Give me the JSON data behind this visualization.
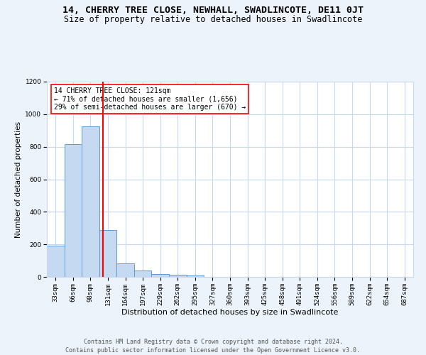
{
  "title": "14, CHERRY TREE CLOSE, NEWHALL, SWADLINCOTE, DE11 0JT",
  "subtitle": "Size of property relative to detached houses in Swadlincote",
  "xlabel": "Distribution of detached houses by size in Swadlincote",
  "ylabel": "Number of detached properties",
  "footer1": "Contains HM Land Registry data © Crown copyright and database right 2024.",
  "footer2": "Contains public sector information licensed under the Open Government Licence v3.0.",
  "bar_labels": [
    "33sqm",
    "66sqm",
    "98sqm",
    "131sqm",
    "164sqm",
    "197sqm",
    "229sqm",
    "262sqm",
    "295sqm",
    "327sqm",
    "360sqm",
    "393sqm",
    "425sqm",
    "458sqm",
    "491sqm",
    "524sqm",
    "556sqm",
    "589sqm",
    "622sqm",
    "654sqm",
    "687sqm"
  ],
  "bar_values": [
    190,
    815,
    925,
    290,
    82,
    38,
    18,
    12,
    10,
    0,
    0,
    0,
    0,
    0,
    0,
    0,
    0,
    0,
    0,
    0,
    0
  ],
  "bar_color": "#c5d9f0",
  "bar_edge_color": "#5b9bd5",
  "bar_width": 1.0,
  "vline_color": "red",
  "ylim": [
    0,
    1200
  ],
  "yticks": [
    0,
    200,
    400,
    600,
    800,
    1000,
    1200
  ],
  "annotation_line1": "14 CHERRY TREE CLOSE: 121sqm",
  "annotation_line2": "← 71% of detached houses are smaller (1,656)",
  "annotation_line3": "29% of semi-detached houses are larger (670) →",
  "annotation_box_color": "white",
  "annotation_box_edge_color": "red",
  "bg_color": "#edf3fb",
  "plot_bg_color": "white",
  "grid_color": "#c8d8ee",
  "title_fontsize": 9.5,
  "subtitle_fontsize": 8.5,
  "xlabel_fontsize": 8,
  "ylabel_fontsize": 7.5,
  "tick_fontsize": 6.5,
  "annotation_fontsize": 7,
  "footer_fontsize": 6
}
